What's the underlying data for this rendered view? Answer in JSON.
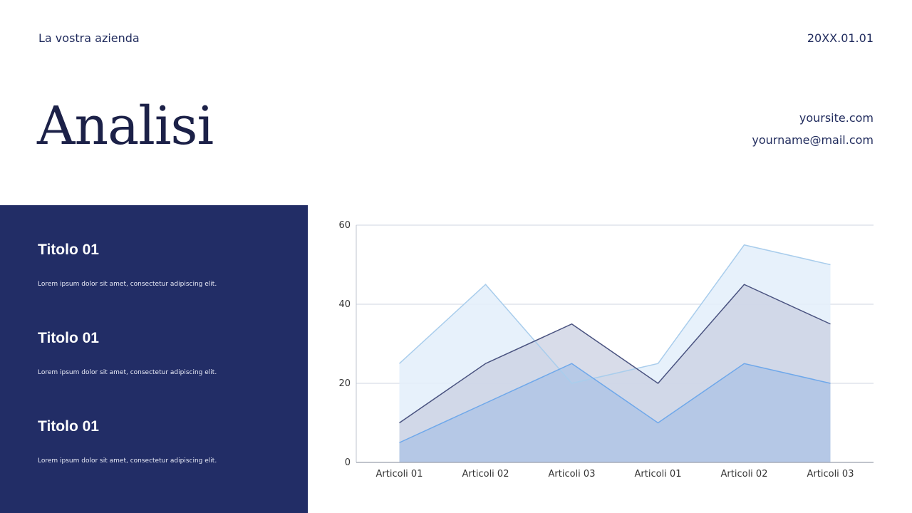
{
  "header": {
    "company": "La vostra azienda",
    "date": "20XX.01.01",
    "title": "Analisi"
  },
  "contact": {
    "website": "yoursite.com",
    "email": "yourname@mail.com"
  },
  "side_panel": {
    "items": [
      {
        "heading": "Titolo 01",
        "text": "Lorem ipsum dolor sit amet, consectetur adipiscing elit."
      },
      {
        "heading": "Titolo 01",
        "text": "Lorem ipsum dolor sit amet, consectetur adipiscing elit."
      },
      {
        "heading": "Titolo 01",
        "text": "Lorem ipsum dolor sit amet, consectetur adipiscing elit."
      }
    ]
  },
  "colors": {
    "panel": "#222d66",
    "title": "#1c2148"
  },
  "chart_data": {
    "type": "area",
    "categories": [
      "Articoli 01",
      "Articoli 02",
      "Articoli 03",
      "Articoli 01",
      "Articoli 02",
      "Articoli 03"
    ],
    "series": [
      {
        "values": [
          25,
          45,
          20,
          25,
          55,
          50
        ],
        "color": "#a9cdec",
        "fill": "#e3eefa"
      },
      {
        "values": [
          10,
          25,
          35,
          20,
          45,
          35
        ],
        "color": "#4a5380",
        "fill": "#c8cde0"
      },
      {
        "values": [
          5,
          15,
          25,
          10,
          25,
          20
        ],
        "color": "#6fa8ea",
        "fill": "#a9c2e6"
      }
    ],
    "ylim": [
      0,
      60
    ],
    "yticks": [
      0,
      20,
      40,
      60
    ],
    "grid": true,
    "title": "",
    "xlabel": "",
    "ylabel": ""
  }
}
